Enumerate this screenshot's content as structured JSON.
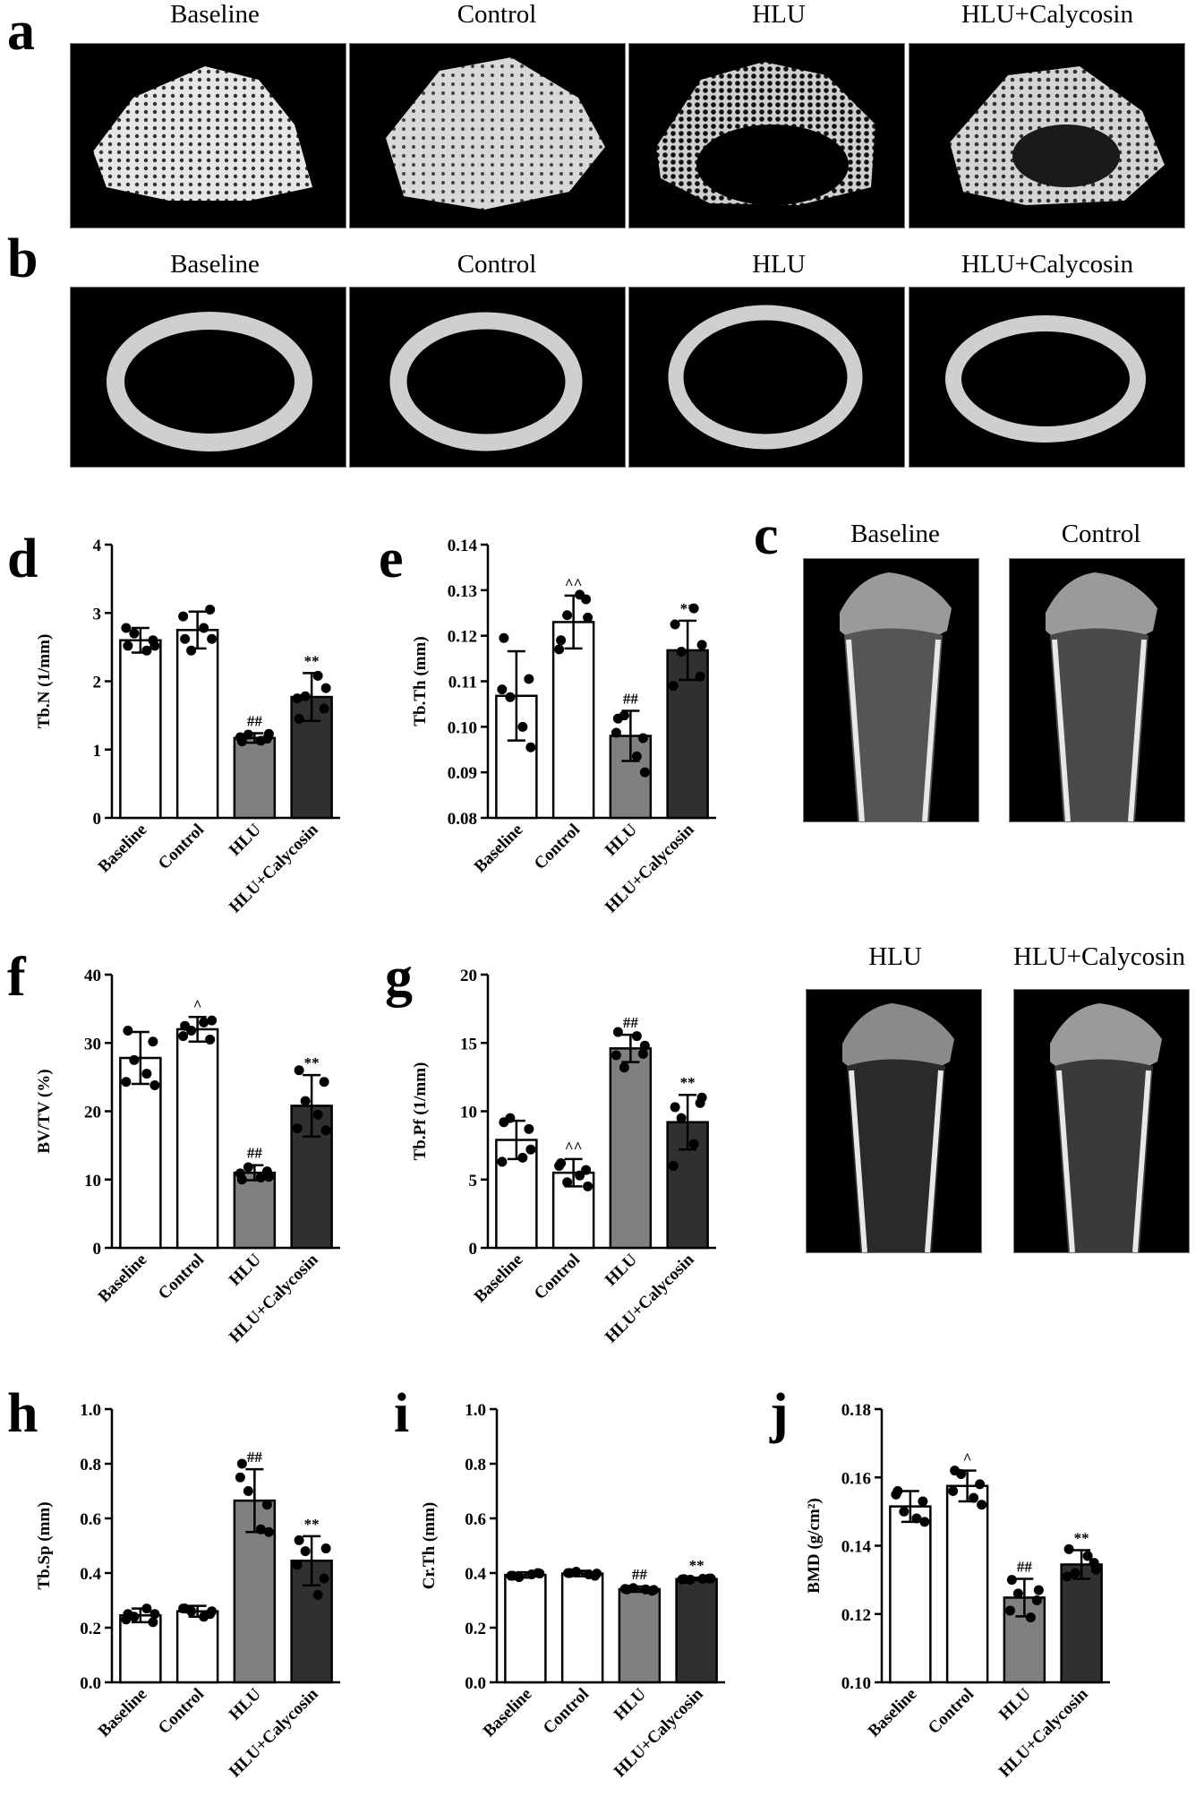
{
  "panel_letters": {
    "a": "a",
    "b": "b",
    "c": "c",
    "d": "d",
    "e": "e",
    "f": "f",
    "g": "g",
    "h": "h",
    "i": "i",
    "j": "j"
  },
  "groups": [
    "Baseline",
    "Control",
    "HLU",
    "HLU+Calycosin"
  ],
  "row_a_titles": [
    "Baseline",
    "Control",
    "HLU",
    "HLU+Calycosin"
  ],
  "row_b_titles": [
    "Baseline",
    "Control",
    "HLU",
    "HLU+Calycosin"
  ],
  "panel_c_titles": [
    "Baseline",
    "Control",
    "HLU",
    "HLU+Calycosin"
  ],
  "colors": {
    "baseline": "#ffffff",
    "control": "#ffffff",
    "hlu": "#808080",
    "calycosin": "#303030",
    "image_bg": "#000000",
    "bone": "#d8d8d8"
  },
  "chart_data": [
    {
      "id": "d",
      "type": "bar",
      "ylabel": "Tb.N (1/mm)",
      "categories": [
        "Baseline",
        "Control",
        "HLU",
        "HLU+Calycosin"
      ],
      "values": [
        2.6,
        2.75,
        1.17,
        1.77
      ],
      "errors": [
        0.18,
        0.27,
        0.07,
        0.35
      ],
      "ylim": [
        0,
        4
      ],
      "yticks": [
        "0",
        "1",
        "2",
        "3",
        "4"
      ],
      "annotations": [
        "",
        "",
        "##",
        "**"
      ],
      "points": [
        [
          2.52,
          2.6,
          2.7,
          2.45,
          2.78,
          2.52
        ],
        [
          2.62,
          3.05,
          2.45,
          2.78,
          2.95,
          2.62
        ],
        [
          1.12,
          1.16,
          1.22,
          1.13,
          1.18,
          1.23
        ],
        [
          1.45,
          1.6,
          1.78,
          2.08,
          1.75,
          1.9
        ]
      ]
    },
    {
      "id": "e",
      "type": "bar",
      "ylabel": "Tb.Th (mm)",
      "categories": [
        "Baseline",
        "Control",
        "HLU",
        "HLU+Calycosin"
      ],
      "values": [
        0.1068,
        0.123,
        0.098,
        0.1168
      ],
      "errors": [
        0.0098,
        0.0058,
        0.0055,
        0.0065
      ],
      "ylim": [
        0.08,
        0.14
      ],
      "yticks": [
        "0.08",
        "0.09",
        "0.10",
        "0.11",
        "0.12",
        "0.13",
        "0.14"
      ],
      "annotations": [
        "",
        "^^",
        "##",
        "**"
      ],
      "points": [
        [
          0.1195,
          0.1105,
          0.1065,
          0.1,
          0.1082,
          0.0955
        ],
        [
          0.119,
          0.128,
          0.1245,
          0.129,
          0.117,
          0.124
        ],
        [
          0.1018,
          0.0975,
          0.1025,
          0.0935,
          0.0987,
          0.09
        ],
        [
          0.1225,
          0.111,
          0.1165,
          0.126,
          0.109,
          0.118
        ]
      ]
    },
    {
      "id": "f",
      "type": "bar",
      "ylabel": "BV/TV (%)",
      "categories": [
        "Baseline",
        "Control",
        "HLU",
        "HLU+Calycosin"
      ],
      "values": [
        27.8,
        32,
        11,
        20.8
      ],
      "errors": [
        3.8,
        1.8,
        1.1,
        4.5
      ],
      "ylim": [
        0,
        40
      ],
      "yticks": [
        "0",
        "10",
        "20",
        "30",
        "40"
      ],
      "annotations": [
        "",
        "^",
        "##",
        "**"
      ],
      "points": [
        [
          31.8,
          30.2,
          27.5,
          25.5,
          24.3,
          23.8
        ],
        [
          32.5,
          30.5,
          31.8,
          33,
          31,
          33.3
        ],
        [
          10,
          11.2,
          11.8,
          10.3,
          10.9,
          10.4
        ],
        [
          26,
          24.3,
          21.5,
          19.5,
          17.5,
          17.2
        ]
      ]
    },
    {
      "id": "g",
      "type": "bar",
      "ylabel": "Tb.Pf (1/mm)",
      "categories": [
        "Baseline",
        "Control",
        "HLU",
        "HLU+Calycosin"
      ],
      "values": [
        7.9,
        5.5,
        14.6,
        9.2
      ],
      "errors": [
        1.4,
        1,
        1,
        2
      ],
      "ylim": [
        0,
        20
      ],
      "yticks": [
        "0",
        "5",
        "10",
        "15",
        "20"
      ],
      "annotations": [
        "",
        "^^",
        "##",
        "**"
      ],
      "points": [
        [
          9.2,
          8.7,
          9.5,
          6.6,
          6.3,
          7.2
        ],
        [
          6.2,
          5.7,
          4.8,
          5.3,
          6,
          4.5
        ],
        [
          15.8,
          14.2,
          13.2,
          15.5,
          14.1,
          14.8
        ],
        [
          10.3,
          10.6,
          9.5,
          7.6,
          6,
          11
        ]
      ]
    },
    {
      "id": "h",
      "type": "bar",
      "ylabel": "Tb.Sp (mm)",
      "categories": [
        "Baseline",
        "Control",
        "HLU",
        "HLU+Calycosin"
      ],
      "values": [
        0.245,
        0.26,
        0.665,
        0.445
      ],
      "errors": [
        0.025,
        0.02,
        0.115,
        0.09
      ],
      "ylim": [
        0,
        1
      ],
      "yticks": [
        "0.0",
        "0.2",
        "0.4",
        "0.6",
        "0.8",
        "1.0"
      ],
      "annotations": [
        "",
        "",
        "##",
        "**"
      ],
      "points": [
        [
          0.25,
          0.22,
          0.24,
          0.27,
          0.23,
          0.25
        ],
        [
          0.27,
          0.25,
          0.26,
          0.24,
          0.27,
          0.26
        ],
        [
          0.8,
          0.65,
          0.7,
          0.56,
          0.75,
          0.55
        ],
        [
          0.52,
          0.38,
          0.48,
          0.32,
          0.43,
          0.49
        ]
      ]
    },
    {
      "id": "i",
      "type": "bar",
      "ylabel": "Cr.Th (mm)",
      "categories": [
        "Baseline",
        "Control",
        "HLU",
        "HLU+Calycosin"
      ],
      "values": [
        0.393,
        0.398,
        0.341,
        0.378
      ],
      "errors": [
        0.01,
        0.01,
        0.01,
        0.005
      ],
      "ylim": [
        0,
        1
      ],
      "yticks": [
        "0.0",
        "0.2",
        "0.4",
        "0.6",
        "0.8",
        "1.0"
      ],
      "annotations": [
        "",
        "",
        "##",
        "**"
      ],
      "points": [
        [
          0.39,
          0.4,
          0.385,
          0.395,
          0.39,
          0.398
        ],
        [
          0.4,
          0.39,
          0.405,
          0.395,
          0.4,
          0.398
        ],
        [
          0.34,
          0.335,
          0.345,
          0.34,
          0.342,
          0.338
        ],
        [
          0.378,
          0.38,
          0.376,
          0.379,
          0.377,
          0.38
        ]
      ]
    },
    {
      "id": "j",
      "type": "bar",
      "ylabel": "BMD (g/cm²)",
      "categories": [
        "Baseline",
        "Control",
        "HLU",
        "HLU+Calycosin"
      ],
      "values": [
        0.1515,
        0.1575,
        0.1248,
        0.1345
      ],
      "errors": [
        0.0045,
        0.0045,
        0.0055,
        0.0042
      ],
      "ylim": [
        0.1,
        0.18
      ],
      "yticks": [
        "0.10",
        "0.12",
        "0.14",
        "0.16",
        "0.18"
      ],
      "annotations": [
        "",
        "^",
        "##",
        "**"
      ],
      "points": [
        [
          0.156,
          0.153,
          0.15,
          0.148,
          0.155,
          0.147
        ],
        [
          0.162,
          0.158,
          0.161,
          0.154,
          0.156,
          0.152
        ],
        [
          0.13,
          0.124,
          0.126,
          0.119,
          0.121,
          0.127
        ],
        [
          0.139,
          0.135,
          0.132,
          0.137,
          0.131,
          0.133
        ]
      ]
    }
  ]
}
